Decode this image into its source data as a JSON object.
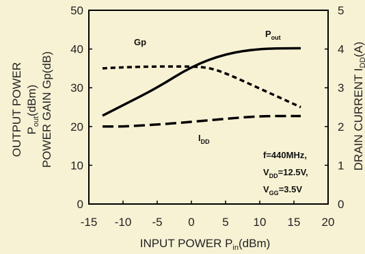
{
  "chart_data": {
    "type": "line",
    "xlabel": "INPUT POWER P_in(dBm)",
    "ylabel_left_1": "OUTPUT POWER",
    "ylabel_left_2": "P_out(dBm)",
    "ylabel_left_3": "POWER GAIN Gp(dB)",
    "ylabel_right": "DRAIN CURRENT I_DD(A)",
    "xlim": [
      -15,
      20
    ],
    "ylim_left": [
      0,
      50
    ],
    "ylim_right": [
      0,
      5
    ],
    "x_ticks": [
      "-15",
      "-10",
      "-5",
      "0",
      "5",
      "10",
      "15",
      "20"
    ],
    "y_ticks_left": [
      "0",
      "10",
      "20",
      "30",
      "40",
      "50"
    ],
    "y_ticks_right": [
      "0",
      "1",
      "2",
      "3",
      "4",
      "5"
    ],
    "grid": false,
    "series": [
      {
        "name": "Pout",
        "label": "P_out",
        "axis": "left",
        "style": "solid",
        "x": [
          -13,
          -10,
          -5,
          0,
          5,
          10,
          15,
          16
        ],
        "values": [
          22.8,
          25.5,
          30,
          35.5,
          38.8,
          40.1,
          40.2,
          40.2
        ]
      },
      {
        "name": "Gp",
        "label": "Gp",
        "axis": "left",
        "style": "dotted",
        "x": [
          -13,
          -10,
          -5,
          0,
          2.5,
          5,
          10,
          15,
          16
        ],
        "values": [
          35,
          35.3,
          35.5,
          35.5,
          35.2,
          33.8,
          29.8,
          25.8,
          25
        ]
      },
      {
        "name": "IDD",
        "label": "I_DD",
        "axis": "right",
        "style": "dashed",
        "x": [
          -13,
          -10,
          -5,
          0,
          5,
          10,
          15,
          16
        ],
        "values": [
          2.0,
          2.0,
          2.05,
          2.12,
          2.2,
          2.27,
          2.27,
          2.27
        ]
      }
    ],
    "annotation": {
      "line1": "f=440MHz,",
      "line2_pre": "V",
      "line2_sub": "DD",
      "line2_post": "=12.5V,",
      "line3_pre": "V",
      "line3_sub": "GG",
      "line3_post": "=3.5V"
    }
  }
}
